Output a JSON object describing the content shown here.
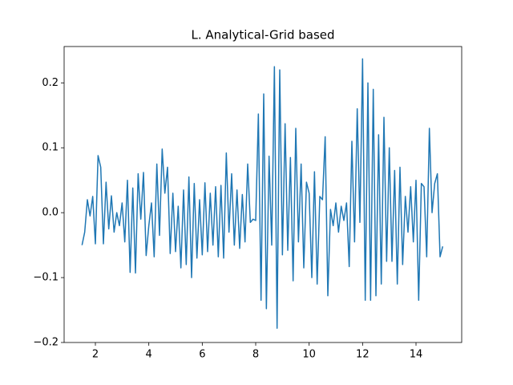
{
  "chart_data": {
    "type": "line",
    "title": "L. Analytical-Grid based",
    "color": "#1f77b4",
    "x": [
      1.5,
      1.6,
      1.7,
      1.8,
      1.9,
      2.0,
      2.1,
      2.2,
      2.3,
      2.4,
      2.5,
      2.6,
      2.7,
      2.8,
      2.9,
      3.0,
      3.1,
      3.2,
      3.3,
      3.4,
      3.5,
      3.6,
      3.7,
      3.8,
      3.9,
      4.0,
      4.1,
      4.2,
      4.3,
      4.4,
      4.5,
      4.6,
      4.7,
      4.8,
      4.9,
      5.0,
      5.1,
      5.2,
      5.3,
      5.4,
      5.5,
      5.6,
      5.7,
      5.8,
      5.9,
      6.0,
      6.1,
      6.2,
      6.3,
      6.4,
      6.5,
      6.6,
      6.7,
      6.8,
      6.9,
      7.0,
      7.1,
      7.2,
      7.3,
      7.4,
      7.5,
      7.6,
      7.7,
      7.8,
      7.9,
      8.0,
      8.1,
      8.2,
      8.3,
      8.4,
      8.5,
      8.6,
      8.7,
      8.8,
      8.9,
      9.0,
      9.1,
      9.2,
      9.3,
      9.4,
      9.5,
      9.6,
      9.7,
      9.8,
      9.9,
      10.0,
      10.1,
      10.2,
      10.3,
      10.4,
      10.5,
      10.6,
      10.7,
      10.8,
      10.9,
      11.0,
      11.1,
      11.2,
      11.3,
      11.4,
      11.5,
      11.6,
      11.7,
      11.8,
      11.9,
      12.0,
      12.1,
      12.2,
      12.3,
      12.4,
      12.5,
      12.6,
      12.7,
      12.8,
      12.9,
      13.0,
      13.1,
      13.2,
      13.3,
      13.4,
      13.5,
      13.6,
      13.7,
      13.8,
      13.9,
      14.0,
      14.1,
      14.2,
      14.3,
      14.4,
      14.5,
      14.6,
      14.7,
      14.8,
      14.9,
      15.0
    ],
    "values": [
      -0.05,
      -0.03,
      0.02,
      -0.005,
      0.025,
      -0.048,
      0.088,
      0.07,
      -0.048,
      0.047,
      -0.025,
      0.026,
      -0.03,
      0.0,
      -0.02,
      0.015,
      -0.045,
      0.05,
      -0.092,
      0.038,
      -0.093,
      0.06,
      -0.01,
      0.062,
      -0.066,
      -0.02,
      0.015,
      -0.068,
      0.075,
      -0.035,
      0.098,
      0.03,
      0.07,
      -0.063,
      0.03,
      -0.06,
      0.01,
      -0.085,
      0.035,
      -0.08,
      0.055,
      -0.1,
      0.045,
      -0.07,
      0.02,
      -0.065,
      0.046,
      -0.06,
      0.03,
      -0.05,
      0.04,
      -0.068,
      0.042,
      -0.07,
      0.092,
      -0.03,
      0.06,
      -0.05,
      0.035,
      -0.055,
      0.028,
      -0.045,
      0.075,
      -0.015,
      -0.01,
      -0.012,
      0.152,
      -0.135,
      0.183,
      -0.148,
      0.087,
      -0.05,
      0.225,
      -0.178,
      0.22,
      -0.065,
      0.137,
      -0.058,
      0.085,
      -0.105,
      0.13,
      -0.045,
      0.075,
      -0.085,
      0.047,
      0.03,
      -0.1,
      0.063,
      -0.11,
      0.025,
      0.02,
      0.117,
      -0.128,
      0.005,
      -0.02,
      0.015,
      -0.03,
      0.01,
      -0.012,
      0.015,
      -0.083,
      0.11,
      -0.045,
      0.16,
      -0.015,
      0.237,
      -0.135,
      0.2,
      -0.135,
      0.19,
      -0.128,
      0.12,
      -0.11,
      0.147,
      -0.075,
      0.1,
      -0.075,
      0.065,
      -0.11,
      0.07,
      -0.08,
      0.025,
      -0.03,
      0.04,
      -0.045,
      0.05,
      -0.135,
      0.045,
      0.04,
      -0.068,
      0.13,
      0.0,
      0.045,
      0.06,
      -0.068,
      -0.052
    ],
    "xlim": [
      0.83,
      15.71
    ],
    "xticks": [
      2,
      4,
      6,
      8,
      10,
      12,
      14
    ],
    "ylim": [
      -0.2,
      0.256
    ],
    "yticks": [
      {
        "value": -0.2,
        "label": "−0.2"
      },
      {
        "value": -0.1,
        "label": "−0.1"
      },
      {
        "value": 0,
        "label": "0.0"
      },
      0.1,
      0.2
    ]
  }
}
